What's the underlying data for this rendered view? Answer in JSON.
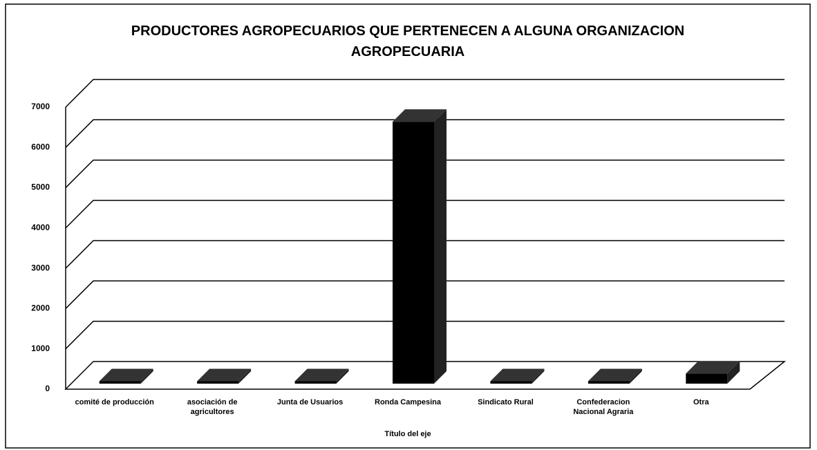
{
  "chart_data": {
    "type": "bar3d",
    "title": "PRODUCTORES AGROPECUARIOS QUE PERTENECEN A ALGUNA ORGANIZACION AGROPECUARIA",
    "x_label": "Título del eje",
    "categories": [
      "comité de producción",
      "asociación de agricultores",
      "Junta de Usuarios",
      "Ronda Campesina",
      "Sindicato Rural",
      "Confederacion Nacional Agraria",
      "Otra"
    ],
    "values": [
      60,
      60,
      60,
      6500,
      60,
      60,
      250
    ],
    "color": "#000000",
    "ylim": [
      0,
      7000
    ],
    "yticks": [
      0,
      1000,
      2000,
      3000,
      4000,
      5000,
      6000,
      7000
    ],
    "grid": true
  }
}
